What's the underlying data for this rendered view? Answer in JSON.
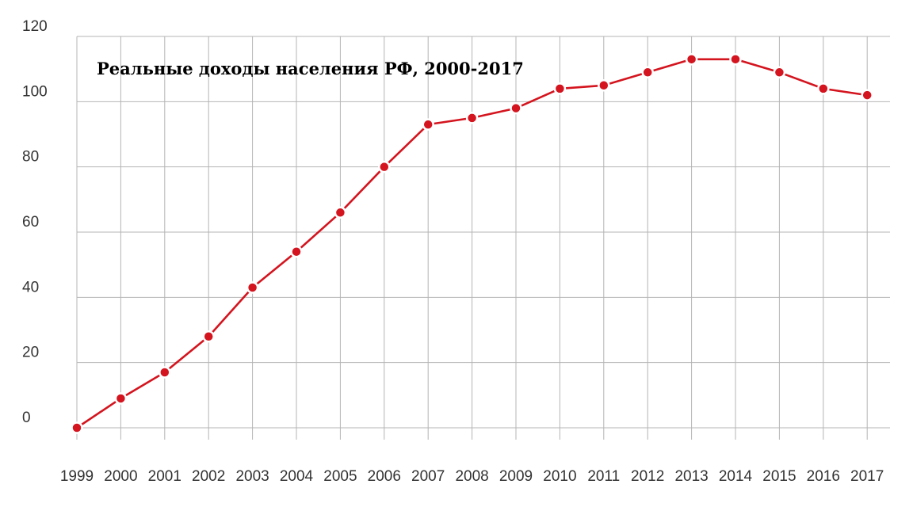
{
  "chart_data": {
    "type": "line",
    "title": "Реальные доходы населения РФ, 2000-2017",
    "xlabel": "",
    "ylabel": "",
    "categories": [
      "1999",
      "2000",
      "2001",
      "2002",
      "2003",
      "2004",
      "2005",
      "2006",
      "2007",
      "2008",
      "2009",
      "2010",
      "2011",
      "2012",
      "2013",
      "2014",
      "2015",
      "2016",
      "2017"
    ],
    "series": [
      {
        "values": [
          0,
          9,
          17,
          28,
          43,
          54,
          66,
          80,
          93,
          95,
          98,
          104,
          105,
          109,
          113,
          113,
          109,
          104,
          102
        ],
        "color": "#d4141e"
      }
    ],
    "ylim": [
      0,
      120
    ],
    "yticks": [
      "0",
      "20",
      "40",
      "60",
      "80",
      "100",
      "120"
    ],
    "grid": true,
    "legend": "none"
  }
}
